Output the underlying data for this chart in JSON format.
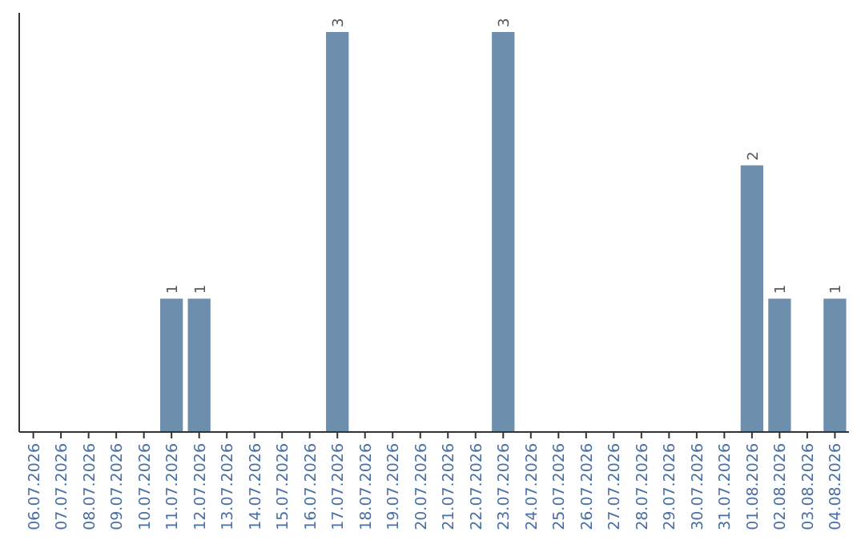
{
  "chart_data": {
    "type": "bar",
    "categories": [
      "06.07.2026",
      "07.07.2026",
      "08.07.2026",
      "09.07.2026",
      "10.07.2026",
      "11.07.2026",
      "12.07.2026",
      "13.07.2026",
      "14.07.2026",
      "15.07.2026",
      "16.07.2026",
      "17.07.2026",
      "18.07.2026",
      "19.07.2026",
      "20.07.2026",
      "21.07.2026",
      "22.07.2026",
      "23.07.2026",
      "24.07.2026",
      "25.07.2026",
      "26.07.2026",
      "27.07.2026",
      "28.07.2026",
      "29.07.2026",
      "30.07.2026",
      "31.07.2026",
      "01.08.2026",
      "02.08.2026",
      "03.08.2026",
      "04.08.2026"
    ],
    "values": [
      0,
      0,
      0,
      0,
      0,
      1,
      1,
      0,
      0,
      0,
      0,
      3,
      0,
      0,
      0,
      0,
      0,
      3,
      0,
      0,
      0,
      0,
      0,
      0,
      0,
      0,
      2,
      1,
      0,
      1
    ],
    "value_labels": [
      null,
      null,
      null,
      null,
      null,
      "1",
      "1",
      null,
      null,
      null,
      null,
      "3",
      null,
      null,
      null,
      null,
      null,
      "3",
      null,
      null,
      null,
      null,
      null,
      null,
      null,
      null,
      "2",
      "1",
      null,
      "1"
    ],
    "color": "#6d8fad"
  }
}
